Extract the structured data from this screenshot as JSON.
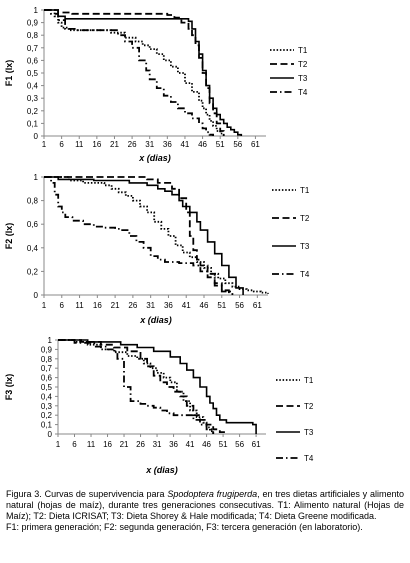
{
  "caption": {
    "prefix": "Figura 3. Curvas de supervivencia para ",
    "species": "Spodoptera frugiperda",
    "body": ", en tres dietas artificiales y alimento natural (hojas de maíz), durante tres generaciones consecutivas. T1: Alimento natural (Hojas de Maíz); T2: Dieta ICRISAT; T3: Dieta Shorey & Hale modificada; T4: Dieta Greene modificada.",
    "note": "F1: primera generación; F2: segunda generación, F3: tercera generación (en laboratorio)."
  },
  "chart_data": [
    {
      "type": "line",
      "title": "",
      "xlabel": "x (dias)",
      "ylabel": "F1 (lx)",
      "xlim": [
        1,
        64
      ],
      "ylim": [
        0,
        1
      ],
      "x_ticks": [
        "1",
        "6",
        "11",
        "16",
        "21",
        "26",
        "31",
        "36",
        "41",
        "46",
        "51",
        "56",
        "61"
      ],
      "y_ticks": [
        "0",
        "0,1",
        "0,2",
        "0,3",
        "0,4",
        "0,5",
        "0,6",
        "0,7",
        "0,8",
        "0,9",
        "1"
      ],
      "legend_position": "right",
      "series": [
        {
          "name": "T1",
          "style": "dotted",
          "x": [
            1,
            4,
            5,
            6,
            8,
            10,
            20,
            24,
            27,
            29,
            31,
            33,
            35,
            37,
            39,
            41,
            43,
            45,
            46,
            47,
            48,
            49,
            50,
            51,
            52
          ],
          "y": [
            1,
            0.95,
            0.9,
            0.86,
            0.84,
            0.84,
            0.82,
            0.78,
            0.75,
            0.72,
            0.69,
            0.65,
            0.6,
            0.55,
            0.5,
            0.42,
            0.35,
            0.28,
            0.22,
            0.17,
            0.12,
            0.08,
            0.04,
            0.02,
            0
          ]
        },
        {
          "name": "T2",
          "style": "dash",
          "x": [
            1,
            5,
            9,
            36,
            38,
            40,
            42,
            43,
            44,
            45,
            46,
            47,
            48,
            49,
            50,
            51,
            52
          ],
          "y": [
            1,
            0.98,
            0.97,
            0.96,
            0.94,
            0.9,
            0.85,
            0.8,
            0.72,
            0.62,
            0.5,
            0.38,
            0.26,
            0.18,
            0.1,
            0.04,
            0
          ]
        },
        {
          "name": "T3",
          "style": "solid",
          "x": [
            1,
            5,
            7,
            41,
            42,
            43,
            44,
            45,
            46,
            47,
            48,
            49,
            50,
            51,
            52,
            53,
            54,
            55,
            56,
            57
          ],
          "y": [
            1,
            0.95,
            0.93,
            0.93,
            0.91,
            0.85,
            0.75,
            0.65,
            0.52,
            0.4,
            0.3,
            0.22,
            0.17,
            0.13,
            0.1,
            0.07,
            0.05,
            0.03,
            0.01,
            0
          ]
        },
        {
          "name": "T4",
          "style": "dash-dot",
          "x": [
            1,
            3,
            5,
            7,
            10,
            20,
            22,
            24,
            26,
            28,
            30,
            31,
            33,
            35,
            37,
            39,
            41,
            43,
            45,
            46,
            47,
            48,
            49
          ],
          "y": [
            1,
            0.97,
            0.92,
            0.85,
            0.84,
            0.84,
            0.8,
            0.75,
            0.7,
            0.6,
            0.52,
            0.45,
            0.38,
            0.32,
            0.27,
            0.22,
            0.18,
            0.14,
            0.1,
            0.06,
            0.03,
            0.01,
            0
          ]
        }
      ]
    },
    {
      "type": "line",
      "title": "",
      "xlabel": "x (dias)",
      "ylabel": "F2 (lx)",
      "xlim": [
        1,
        64
      ],
      "ylim": [
        0,
        1
      ],
      "x_ticks": [
        "1",
        "6",
        "11",
        "16",
        "21",
        "26",
        "31",
        "36",
        "41",
        "46",
        "51",
        "56",
        "61"
      ],
      "y_ticks": [
        "0",
        "0,2",
        "0,4",
        "0,6",
        "0,8",
        "1"
      ],
      "legend_position": "right",
      "series": [
        {
          "name": "T1",
          "style": "dotted",
          "x": [
            1,
            8,
            12,
            18,
            20,
            22,
            24,
            26,
            28,
            30,
            32,
            34,
            36,
            38,
            40,
            42,
            44,
            46,
            48,
            50,
            52,
            54,
            56,
            58,
            60,
            62,
            64
          ],
          "y": [
            1,
            0.97,
            0.95,
            0.93,
            0.9,
            0.87,
            0.84,
            0.8,
            0.75,
            0.7,
            0.62,
            0.56,
            0.5,
            0.42,
            0.36,
            0.32,
            0.28,
            0.23,
            0.18,
            0.14,
            0.1,
            0.07,
            0.05,
            0.04,
            0.03,
            0.02,
            0.01
          ]
        },
        {
          "name": "T2",
          "style": "dash",
          "x": [
            1,
            18,
            25,
            30,
            33,
            37,
            39,
            41,
            42,
            43,
            44,
            45,
            47,
            49,
            51,
            53
          ],
          "y": [
            1,
            1,
            1,
            0.98,
            0.95,
            0.9,
            0.82,
            0.7,
            0.5,
            0.38,
            0.3,
            0.25,
            0.18,
            0.1,
            0.04,
            0
          ]
        },
        {
          "name": "T3",
          "style": "solid",
          "x": [
            1,
            5,
            15,
            25,
            30,
            33,
            35,
            37,
            39,
            40,
            42,
            44,
            45,
            47,
            49,
            51,
            53,
            55,
            57
          ],
          "y": [
            1,
            0.98,
            0.97,
            0.95,
            0.93,
            0.9,
            0.88,
            0.85,
            0.8,
            0.75,
            0.7,
            0.62,
            0.55,
            0.45,
            0.35,
            0.25,
            0.15,
            0.06,
            0
          ]
        },
        {
          "name": "T4",
          "style": "dash-dot",
          "x": [
            1,
            3,
            4,
            5,
            6,
            7,
            9,
            12,
            15,
            18,
            21,
            23,
            25,
            27,
            29,
            31,
            33,
            35,
            37,
            39,
            41,
            43,
            45,
            47,
            49,
            51,
            54
          ],
          "y": [
            1,
            0.95,
            0.85,
            0.75,
            0.7,
            0.66,
            0.63,
            0.6,
            0.58,
            0.57,
            0.56,
            0.55,
            0.5,
            0.45,
            0.4,
            0.33,
            0.3,
            0.28,
            0.28,
            0.27,
            0.27,
            0.25,
            0.2,
            0.15,
            0.08,
            0.03,
            0
          ]
        }
      ]
    },
    {
      "type": "line",
      "title": "",
      "xlabel": "x (dias)",
      "ylabel": "F3 (lx)",
      "xlim": [
        1,
        64
      ],
      "ylim": [
        0,
        1
      ],
      "x_ticks": [
        "1",
        "6",
        "11",
        "16",
        "21",
        "26",
        "31",
        "36",
        "41",
        "46",
        "51",
        "56",
        "61"
      ],
      "y_ticks": [
        "0",
        "0,1",
        "0,2",
        "0,3",
        "0,4",
        "0,5",
        "0,6",
        "0,7",
        "0,8",
        "0,9",
        "1"
      ],
      "legend_position": "right",
      "series": [
        {
          "name": "T1",
          "style": "dotted",
          "x": [
            1,
            6,
            10,
            14,
            18,
            22,
            25,
            27,
            29,
            31,
            33,
            35,
            37,
            39,
            41,
            43,
            45,
            46,
            47,
            48
          ],
          "y": [
            1,
            0.98,
            0.95,
            0.9,
            0.87,
            0.83,
            0.8,
            0.75,
            0.7,
            0.65,
            0.6,
            0.55,
            0.45,
            0.35,
            0.25,
            0.18,
            0.12,
            0.07,
            0.03,
            0
          ]
        },
        {
          "name": "T2",
          "style": "dash",
          "x": [
            1,
            8,
            14,
            18,
            22,
            26,
            28,
            30,
            32,
            34,
            36,
            38,
            40,
            42,
            44,
            46,
            48,
            50,
            52
          ],
          "y": [
            1,
            0.98,
            0.95,
            0.92,
            0.88,
            0.8,
            0.72,
            0.62,
            0.55,
            0.5,
            0.45,
            0.4,
            0.3,
            0.2,
            0.15,
            0.1,
            0.05,
            0.02,
            0
          ]
        },
        {
          "name": "T3",
          "style": "solid",
          "x": [
            1,
            10,
            20,
            25,
            30,
            35,
            38,
            40,
            42,
            44,
            46,
            47,
            48,
            49,
            50,
            52,
            56,
            58,
            60,
            61
          ],
          "y": [
            1,
            0.98,
            0.95,
            0.92,
            0.88,
            0.82,
            0.75,
            0.68,
            0.6,
            0.5,
            0.4,
            0.33,
            0.27,
            0.2,
            0.15,
            0.12,
            0.12,
            0.12,
            0.1,
            0
          ]
        },
        {
          "name": "T4",
          "style": "dash-dot",
          "x": [
            1,
            6,
            12,
            16,
            18,
            19,
            21,
            23,
            26,
            28,
            30,
            32,
            34,
            36,
            38,
            40,
            42,
            44,
            46,
            48
          ],
          "y": [
            1,
            0.97,
            0.93,
            0.9,
            0.88,
            0.8,
            0.5,
            0.35,
            0.32,
            0.3,
            0.28,
            0.25,
            0.22,
            0.2,
            0.2,
            0.2,
            0.15,
            0.1,
            0.05,
            0
          ]
        }
      ]
    }
  ]
}
